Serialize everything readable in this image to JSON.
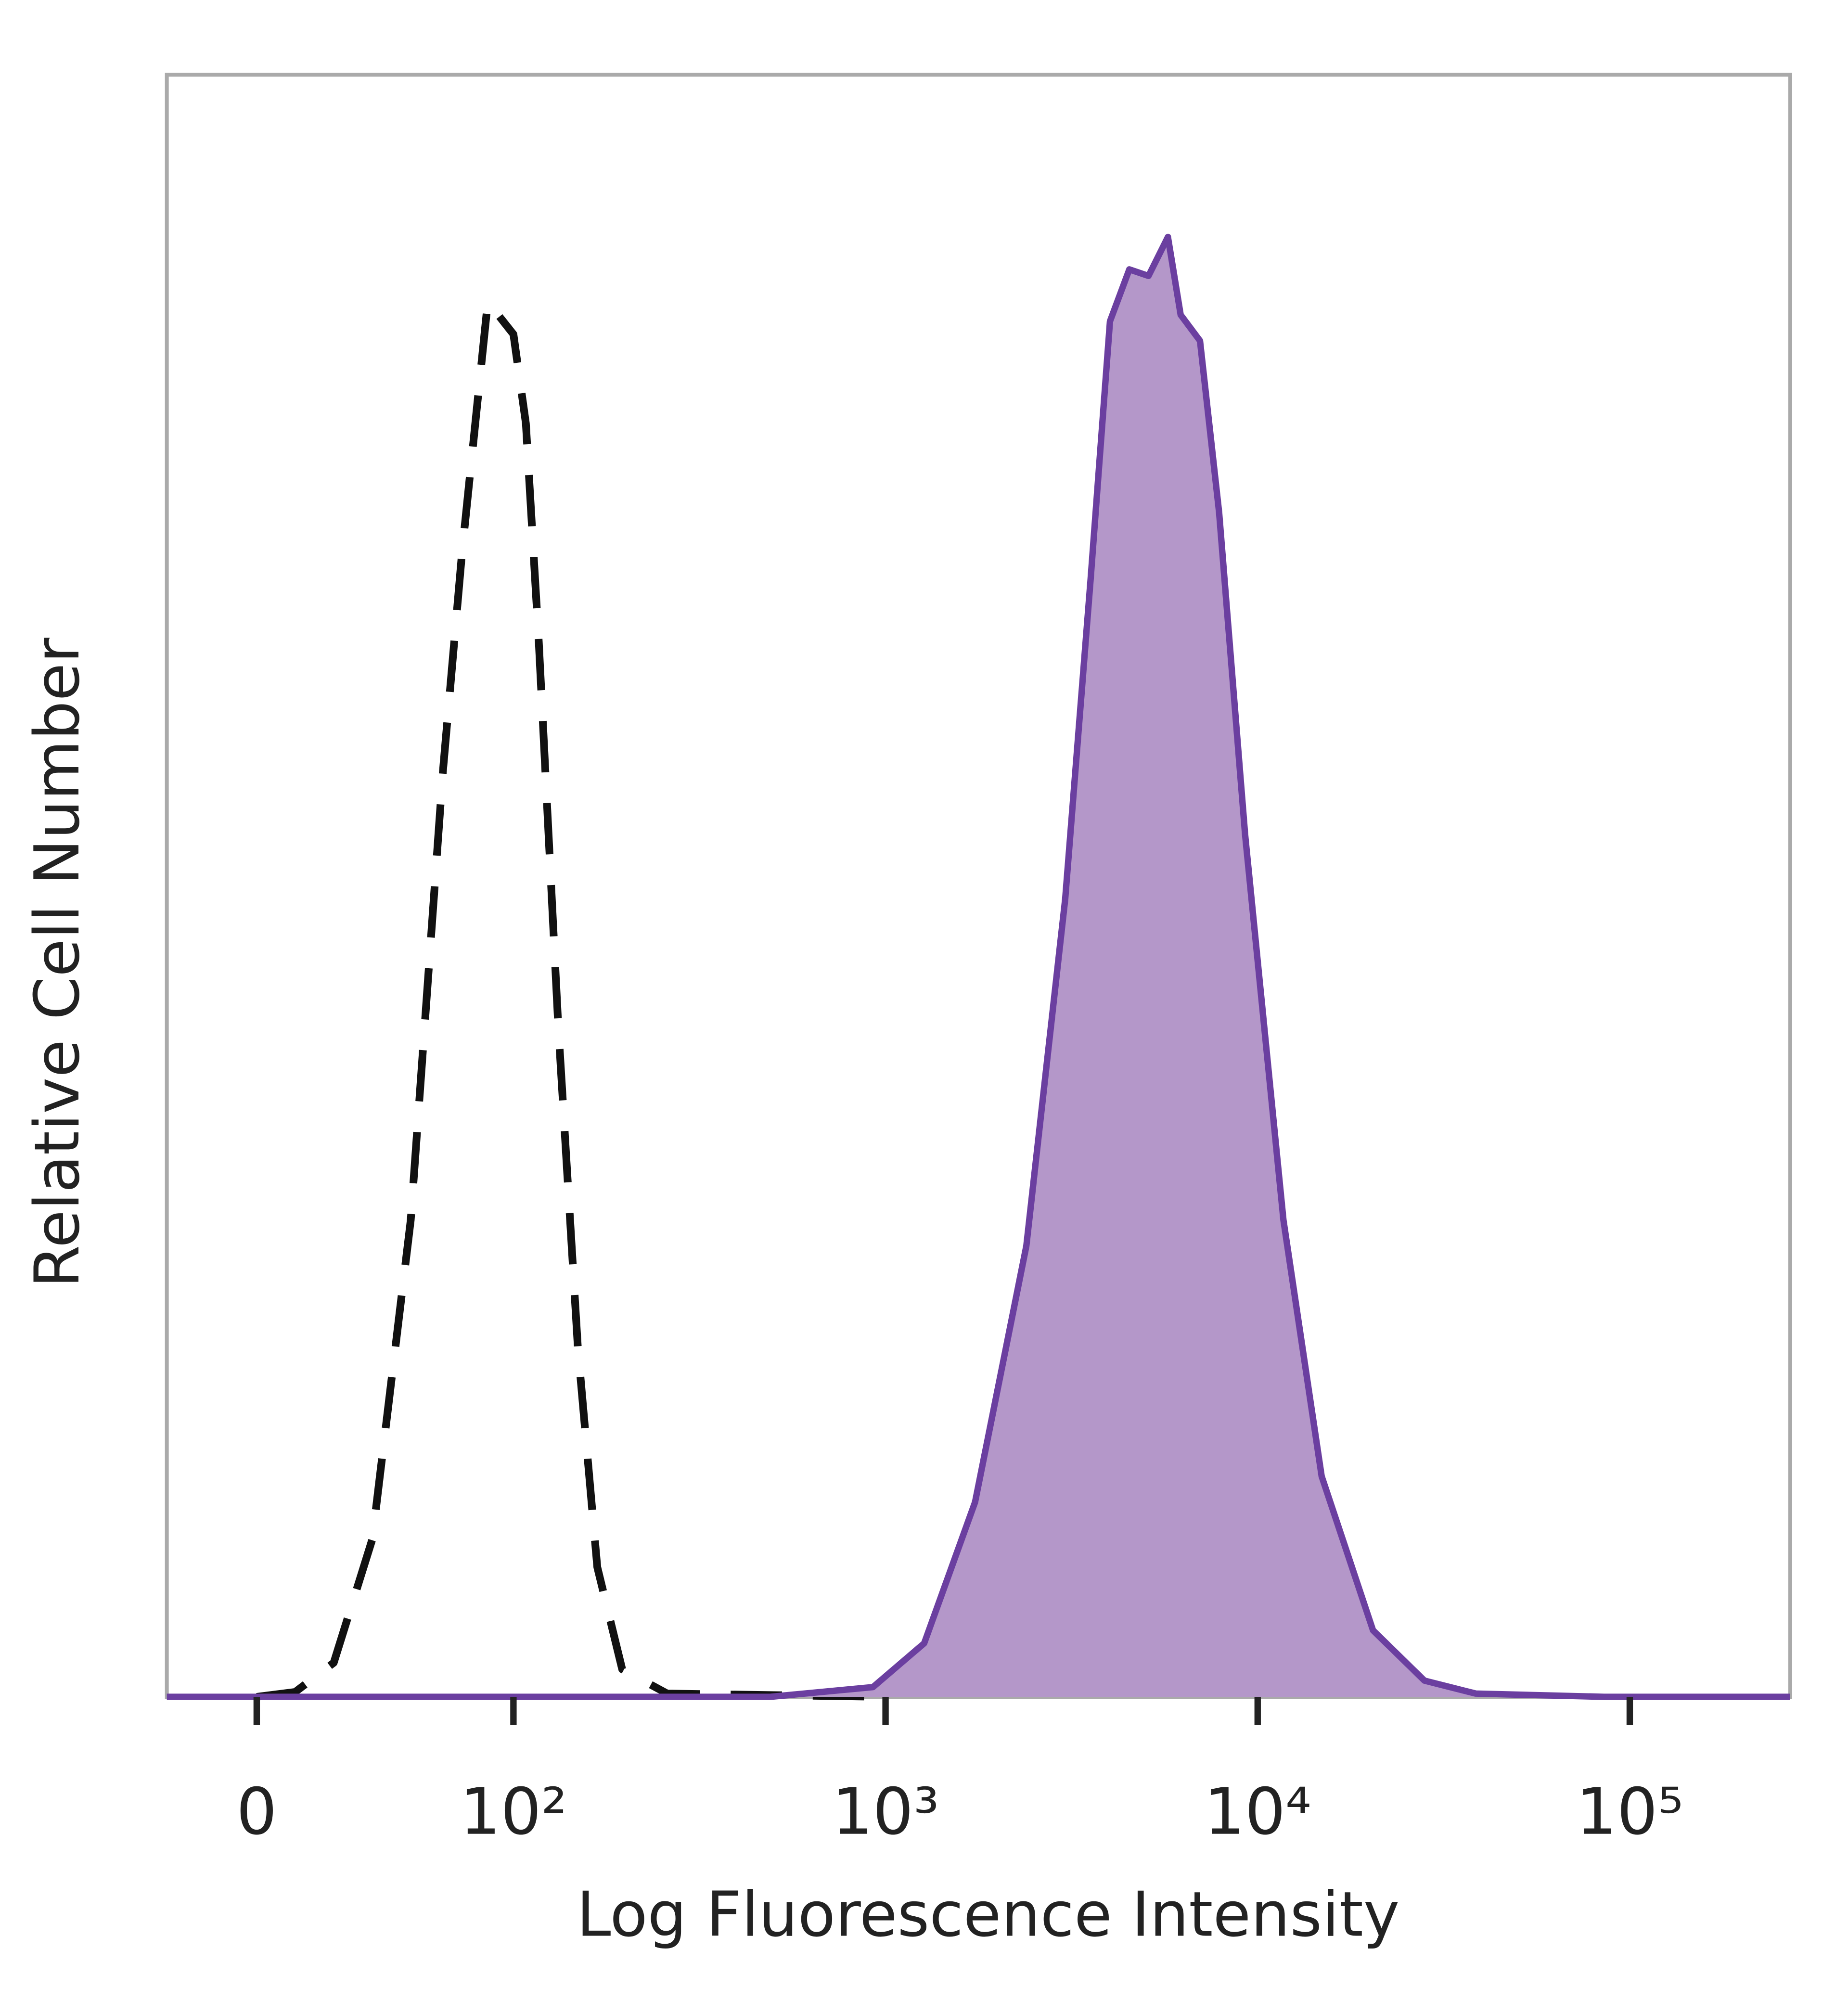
{
  "chart_data": {
    "type": "area",
    "xlabel": "Log Fluorescence Intensity",
    "ylabel": "Relative Cell Number",
    "xscale": "biexponential",
    "xlim": [
      -35,
      270000
    ],
    "ylim": [
      0,
      100
    ],
    "xticks": [
      0,
      {
        "value": 100,
        "label": "10²"
      },
      {
        "value": 1000,
        "label": "10³"
      },
      {
        "value": 10000,
        "label": "10⁴"
      },
      {
        "value": 100000,
        "label": "10⁵"
      }
    ],
    "series": [
      {
        "color": "#111111",
        "dashed": true,
        "fill": null,
        "x": [
          0,
          15,
          30,
          45,
          60,
          72.5,
          80,
          90,
          100,
          108,
          117,
          132,
          149,
          168,
          196,
          259,
          1000
        ],
        "values": [
          0,
          0.3,
          2.1,
          9.7,
          29.4,
          57,
          70.6,
          86,
          84,
          78.5,
          65,
          41.3,
          21.5,
          8,
          1.7,
          0.2,
          0
        ]
      },
      {
        "color": "#6b3fa0",
        "dashed": false,
        "fill": "#b497c9",
        "x": [
          -35,
          490,
          925,
          1270,
          1740,
          2390,
          3040,
          3560,
          4010,
          4520,
          5090,
          5740,
          6210,
          7000,
          7880,
          9250,
          11730,
          14860,
          20420,
          28070,
          38570,
          85300,
          270000
        ],
        "values": [
          0,
          0,
          0.6,
          3.3,
          12,
          27.8,
          49.2,
          69,
          84.8,
          88,
          87.6,
          90,
          85.2,
          83.6,
          73,
          53.2,
          29.4,
          13.6,
          4.1,
          1,
          0.2,
          0,
          0
        ]
      }
    ]
  }
}
